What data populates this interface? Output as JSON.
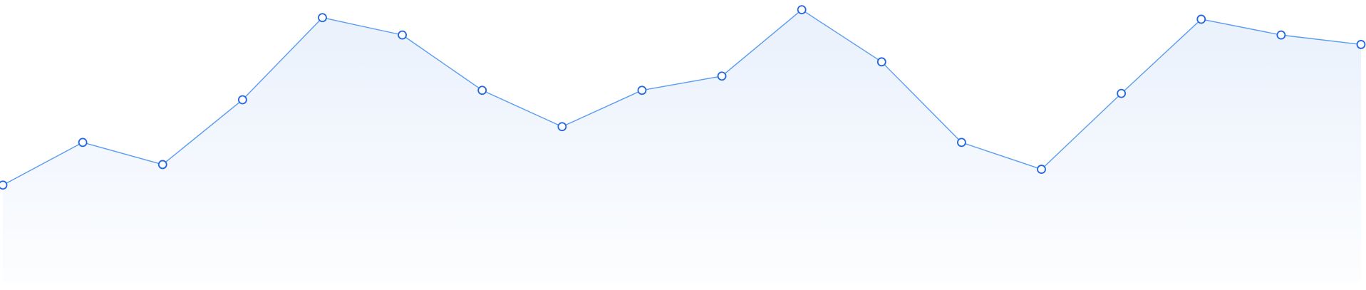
{
  "chart_data": {
    "type": "area",
    "title": "",
    "xlabel": "",
    "ylabel": "",
    "x": [
      1,
      2,
      3,
      4,
      5,
      6,
      7,
      8,
      9,
      10,
      11,
      12,
      13,
      14,
      15,
      16,
      17,
      18
    ],
    "series": [
      {
        "values": [
          30.5,
          44.0,
          37.0,
          57.5,
          83.5,
          78.0,
          60.5,
          49.0,
          60.5,
          65.0,
          86.0,
          69.5,
          44.0,
          35.5,
          59.5,
          83.0,
          78.0,
          75.0
        ],
        "color": "#5b9cf0",
        "marker_stroke": "#2266dd"
      }
    ],
    "ylim": [
      0,
      87.5
    ],
    "grid": false,
    "legend": false,
    "area_fill_color": "#e8f0fc"
  }
}
